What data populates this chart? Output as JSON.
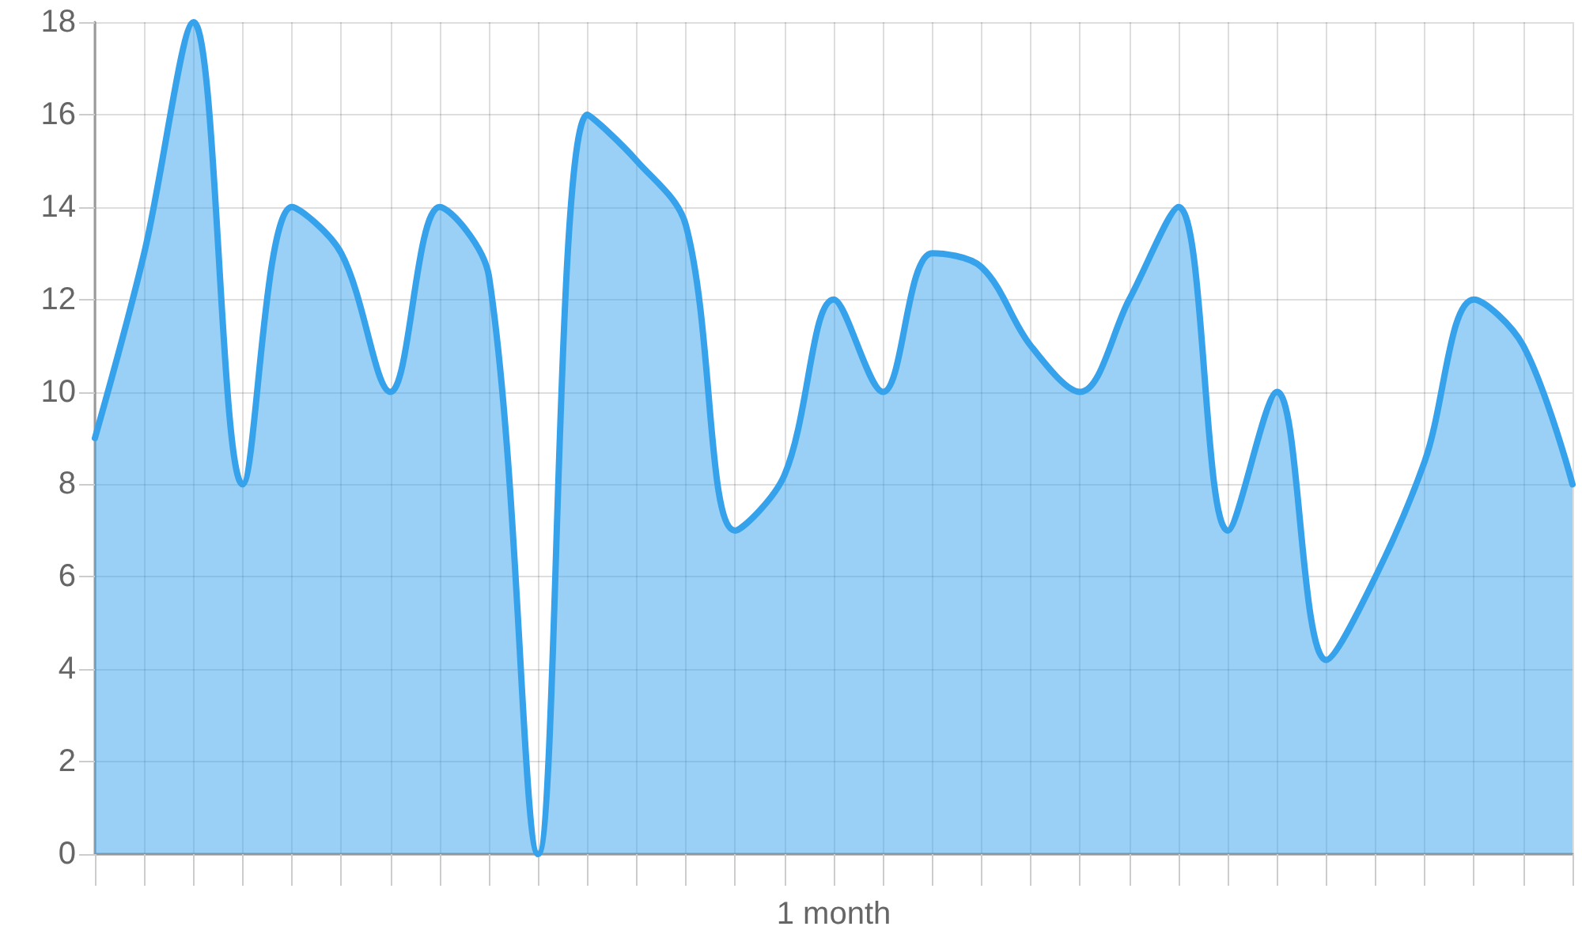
{
  "chart_data": {
    "type": "area",
    "xlabel": "1 month",
    "categories": [
      null,
      null,
      null,
      null,
      null,
      null,
      null,
      null,
      null,
      null,
      null,
      null,
      null,
      null,
      null,
      null,
      null,
      null,
      null,
      null,
      null,
      null,
      null,
      null,
      null,
      null,
      null,
      null,
      null,
      null,
      null
    ],
    "values": [
      9,
      13,
      18,
      8,
      14,
      13,
      10,
      14,
      12.5,
      0,
      16,
      15,
      13.6,
      7,
      8.2,
      12,
      10,
      13,
      12.7,
      11,
      10,
      12,
      14,
      7,
      10,
      4.2,
      6,
      8.5,
      12,
      11,
      8
    ],
    "color": "#36a2eb",
    "ylim": [
      0,
      18
    ],
    "yticks": [
      0,
      2,
      4,
      6,
      8,
      10,
      12,
      14,
      16,
      18
    ],
    "grid": true,
    "marker": "none",
    "line_style": "solid",
    "tick_labels": "y"
  }
}
